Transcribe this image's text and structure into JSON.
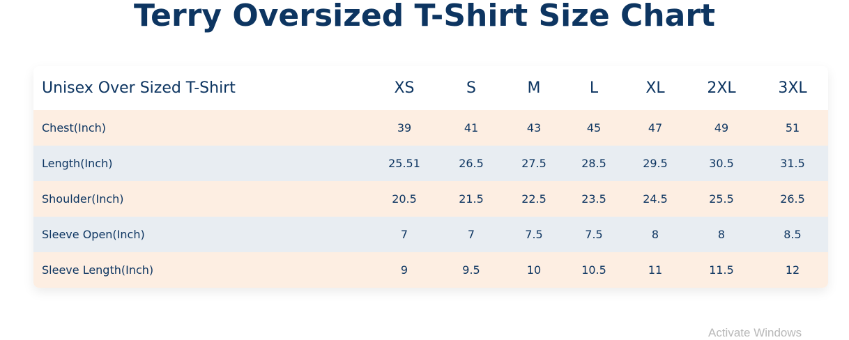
{
  "header": {
    "title": "Terry Oversized T-Shirt Size Chart"
  },
  "table": {
    "columns": [
      "Unisex Over Sized T-Shirt",
      "XS",
      "S",
      "M",
      "L",
      "XL",
      "2XL",
      "3XL"
    ],
    "rows": [
      [
        "Chest(Inch)",
        "39",
        "41",
        "43",
        "45",
        "47",
        "49",
        "51"
      ],
      [
        "Length(Inch)",
        "25.51",
        "26.5",
        "27.5",
        "28.5",
        "29.5",
        "30.5",
        "31.5"
      ],
      [
        "Shoulder(Inch)",
        "20.5",
        "21.5",
        "22.5",
        "23.5",
        "24.5",
        "25.5",
        "26.5"
      ],
      [
        "Sleeve Open(Inch)",
        "7",
        "7",
        "7.5",
        "7.5",
        "8",
        "8",
        "8.5"
      ],
      [
        "Sleeve Length(Inch)",
        "9",
        "9.5",
        "10",
        "10.5",
        "11",
        "11.5",
        "12"
      ]
    ]
  },
  "watermark": "Activate Windows"
}
